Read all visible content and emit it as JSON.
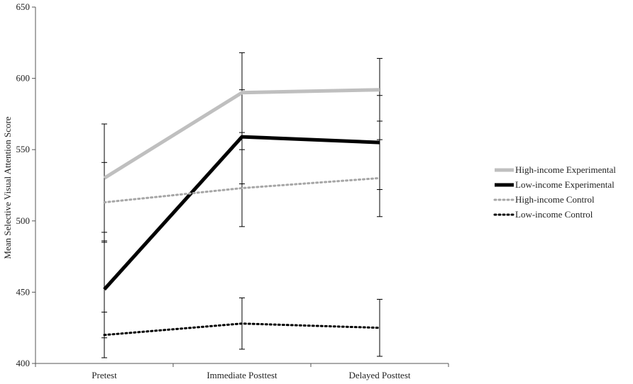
{
  "chart_data": {
    "type": "line",
    "title": "",
    "xlabel": "",
    "ylabel": "Mean Selective Visual Attention Score",
    "categories": [
      "Pretest",
      "Immediate Posttest",
      "Delayed Posttest"
    ],
    "ylim": [
      400,
      650
    ],
    "yticks": [
      400,
      450,
      500,
      550,
      600,
      650
    ],
    "grid": false,
    "legend_position": "right",
    "series": [
      {
        "name": "High-income Experimental",
        "values": [
          530,
          590,
          592
        ],
        "error": [
          38,
          28,
          22
        ],
        "color": "#bfbfbf",
        "style": "solid-thick"
      },
      {
        "name": "Low-income Experimental",
        "values": [
          452,
          559,
          555
        ],
        "error": [
          34,
          33,
          33
        ],
        "color": "#000000",
        "style": "solid-thick"
      },
      {
        "name": "High-income Control",
        "values": [
          513,
          523,
          530
        ],
        "error": [
          28,
          27,
          27
        ],
        "color": "#a6a6a6",
        "style": "dotted"
      },
      {
        "name": "Low-income Control",
        "values": [
          420,
          428,
          425
        ],
        "error": [
          16,
          18,
          20
        ],
        "color": "#000000",
        "style": "dotted"
      }
    ]
  }
}
